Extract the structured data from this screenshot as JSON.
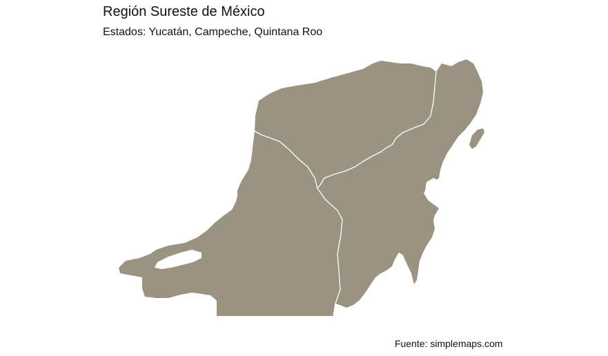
{
  "title": "Región Sureste de México",
  "subtitle": "Estados: Yucatán, Campeche, Quintana Roo",
  "caption": "Fuente: simplemaps.com",
  "map": {
    "fill_color": "#9b9381",
    "border_color": "#ffffff",
    "background_color": "#ffffff",
    "states": [
      "Yucatán",
      "Campeche",
      "Quintana Roo"
    ]
  }
}
